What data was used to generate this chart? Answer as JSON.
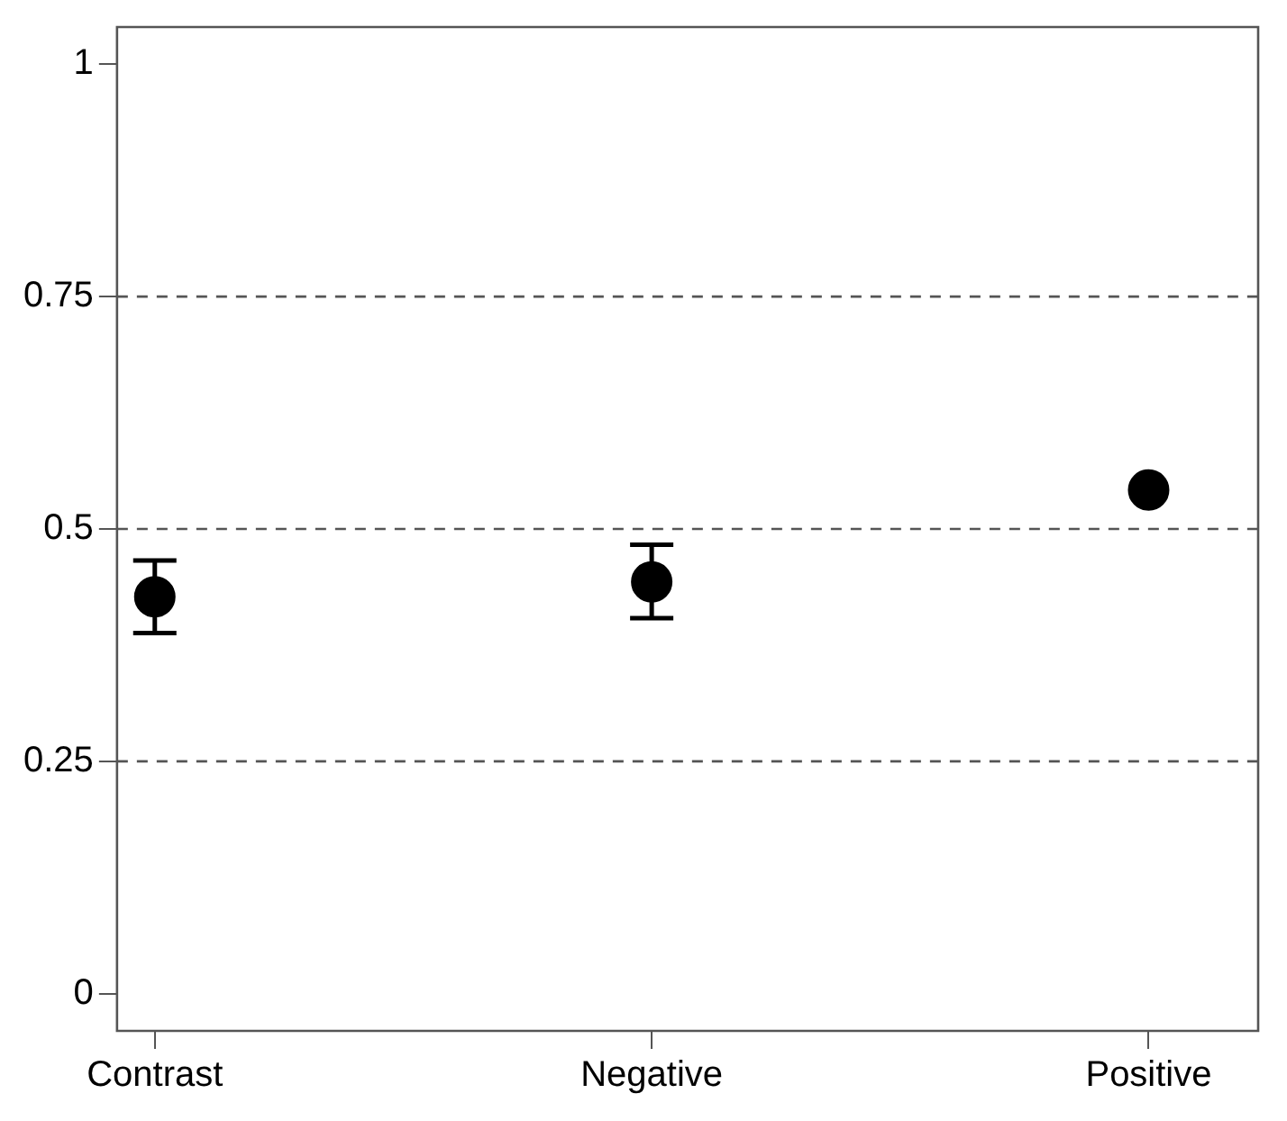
{
  "chart_data": {
    "type": "scatter",
    "categories": [
      "Contrast",
      "Negative",
      "Positive"
    ],
    "series": [
      {
        "color": "#000000",
        "values": [
          0.427,
          0.443,
          0.542
        ],
        "errors": [
          [
            0.388,
            0.466
          ],
          [
            0.404,
            0.483
          ],
          null
        ]
      }
    ],
    "ylim": [
      -0.04,
      1.04
    ],
    "yticks": [
      0,
      0.25,
      0.5,
      0.75,
      1
    ],
    "ref_lines": [
      {
        "axis": "y",
        "value": 0.25,
        "color": "#555555",
        "line_style": "dashed"
      },
      {
        "axis": "y",
        "value": 0.5,
        "color": "#555555",
        "line_style": "dashed"
      },
      {
        "axis": "y",
        "value": 0.75,
        "color": "#555555",
        "line_style": "dashed"
      }
    ],
    "grid": false,
    "legend": false,
    "marker": "circle"
  }
}
